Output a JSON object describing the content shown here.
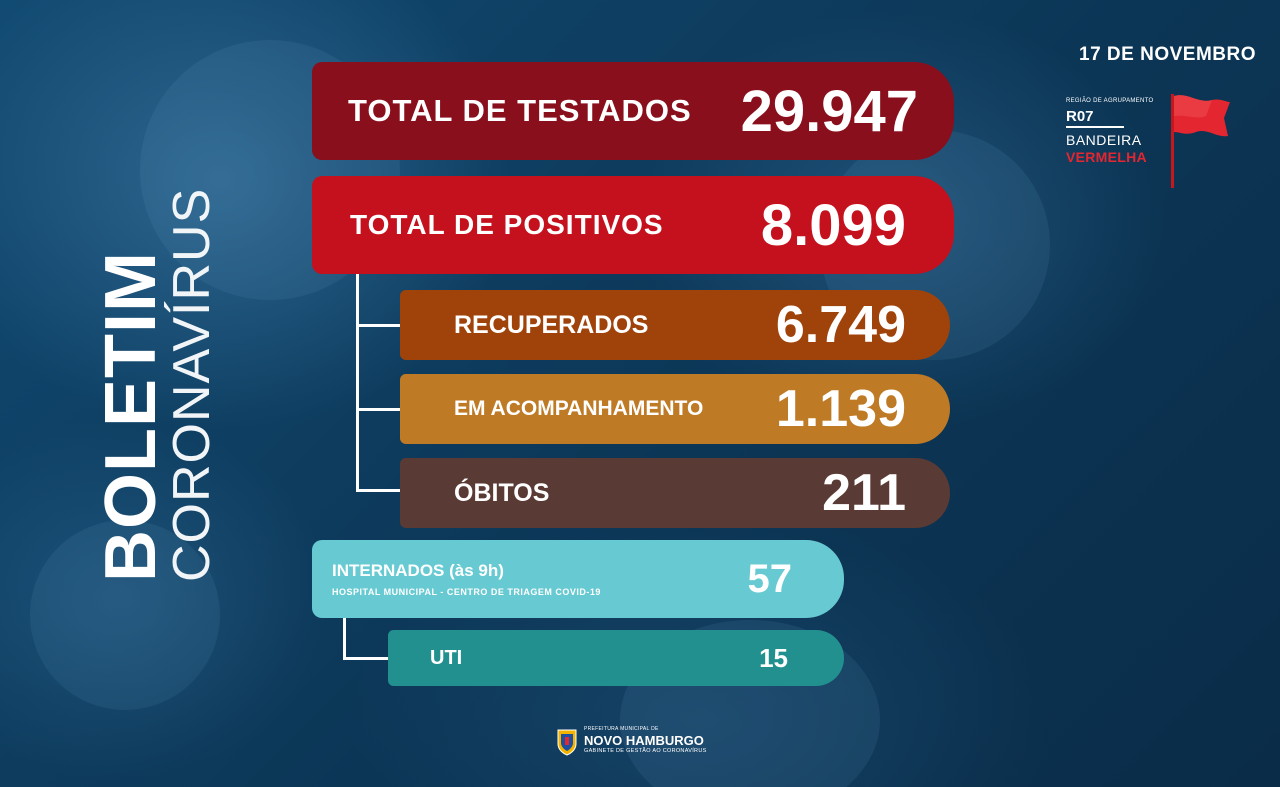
{
  "date": "17 DE NOVEMBRO",
  "title": {
    "bold": "BOLETIM",
    "light": "CORONAVÍRUS"
  },
  "region": {
    "label": "REGIÃO DE AGRUPAMENTO",
    "code": "R07",
    "flag_line1": "BANDEIRA",
    "flag_line2": "VERMELHA",
    "flag_color": "#e3262f"
  },
  "stats": {
    "testados": {
      "label": "TOTAL DE TESTADOS",
      "value": "29.947",
      "color": "#8a0f1c"
    },
    "positivos": {
      "label": "TOTAL DE POSITIVOS",
      "value": "8.099",
      "color": "#c4111d"
    },
    "recuperados": {
      "label": "RECUPERADOS",
      "value": "6.749",
      "color": "#a0430a"
    },
    "acompanhamento": {
      "label": "EM ACOMPANHAMENTO",
      "value": "1.139",
      "color": "#bf7a25"
    },
    "obitos": {
      "label": "ÓBITOS",
      "value": "211",
      "color": "#5a3a34"
    },
    "internados": {
      "label": "INTERNADOS (às 9h)",
      "sublabel": "HOSPITAL MUNICIPAL - CENTRO DE TRIAGEM COVID-19",
      "value": "57",
      "color": "#67cad2"
    },
    "uti": {
      "label": "UTI",
      "value": "15",
      "color": "#22908f"
    }
  },
  "footer": {
    "prefeitura": "PREFEITURA MUNICIPAL DE",
    "city": "NOVO HAMBURGO",
    "gabinete": "GABINETE DE GESTÃO AO CORONAVÍRUS",
    "icon": "city-shield-icon"
  }
}
